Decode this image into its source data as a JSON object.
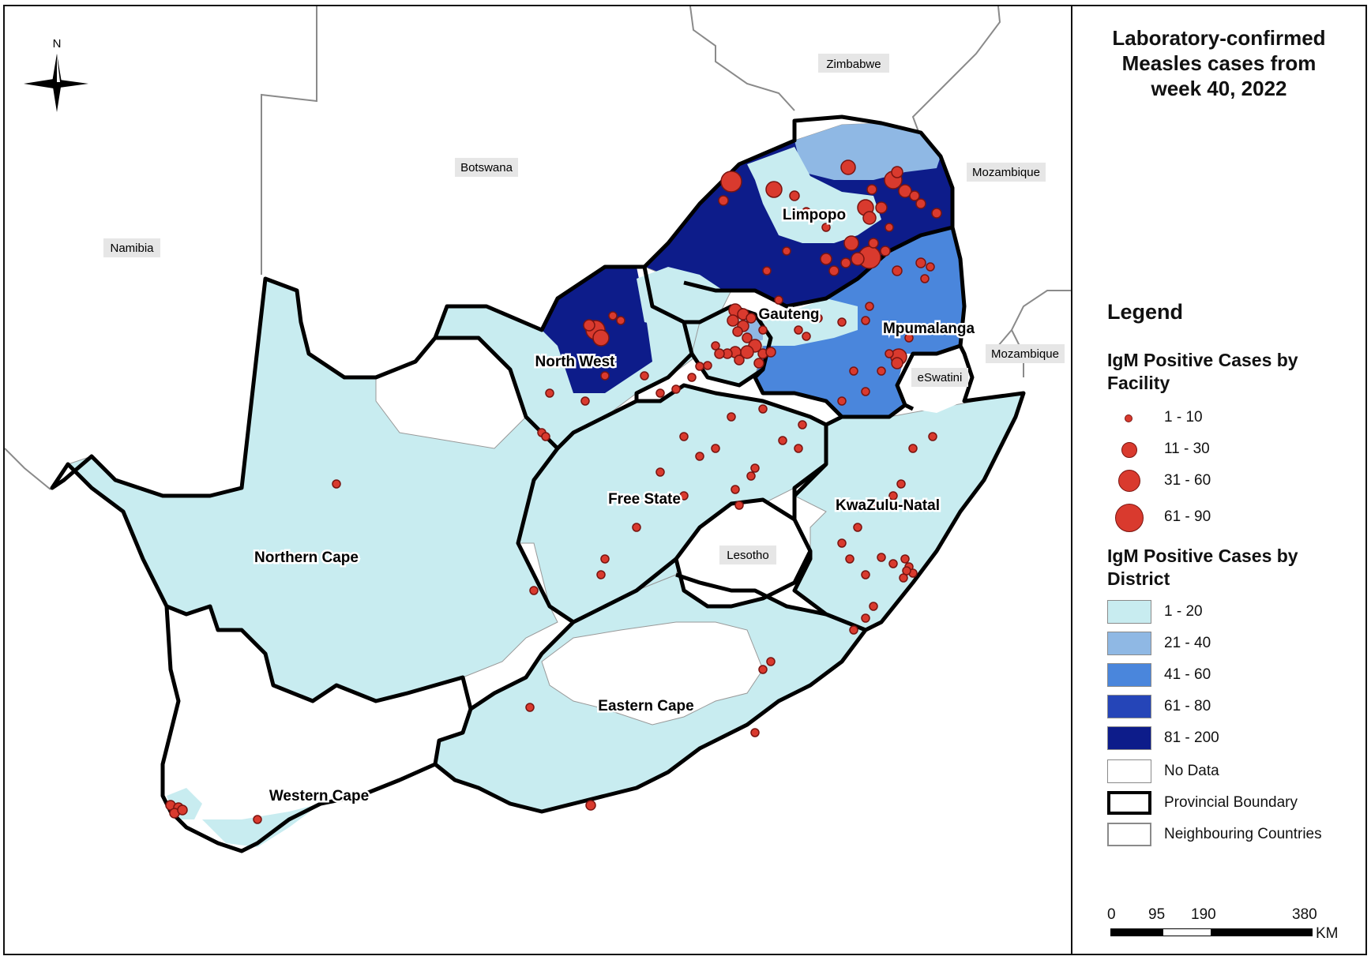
{
  "map": {
    "north_label": "N",
    "countries": {
      "namibia": "Namibia",
      "botswana": "Botswana",
      "zimbabwe": "Zimbabwe",
      "mozambique_n": "Mozambique",
      "mozambique_s": "Mozambique",
      "eswatini": "eSwatini",
      "lesotho": "Lesotho"
    },
    "provinces": {
      "limpopo": "Limpopo",
      "gauteng": "Gauteng",
      "mpumalanga": "Mpumalanga",
      "north_west": "North West",
      "free_state": "Free State",
      "kwazulu_natal": "KwaZulu-Natal",
      "northern_cape": "Northern Cape",
      "eastern_cape": "Eastern Cape",
      "western_cape": "Western Cape"
    },
    "colors": {
      "class_1_20": "#c8ecf0",
      "class_21_40": "#8fb8e4",
      "class_41_60": "#4a86dc",
      "class_61_80": "#2545b8",
      "class_81_200": "#0d1c8a",
      "no_data": "#ffffff",
      "facility_dot": "#d93a2e",
      "province_border": "#000000",
      "neighbour_border": "#8a8a8a"
    }
  },
  "panel": {
    "title_lines": [
      "Laboratory-confirmed",
      "Measles cases from",
      "week 40, 2022"
    ],
    "legend_heading": "Legend",
    "facility_heading": "IgM Positive Cases by Facility",
    "facility_classes": [
      "1 - 10",
      "11 - 30",
      "31 - 60",
      "61 - 90"
    ],
    "district_heading": "IgM Positive Cases by District",
    "district_classes": [
      "1 - 20",
      "21 - 40",
      "41 - 60",
      "61 - 80",
      "81 - 200"
    ],
    "no_data": "No Data",
    "provincial_boundary": "Provincial Boundary",
    "neighbouring_countries": "Neighbouring Countries",
    "scale": {
      "ticks": [
        "0",
        "95",
        "190",
        "380"
      ],
      "unit": "KM"
    }
  }
}
